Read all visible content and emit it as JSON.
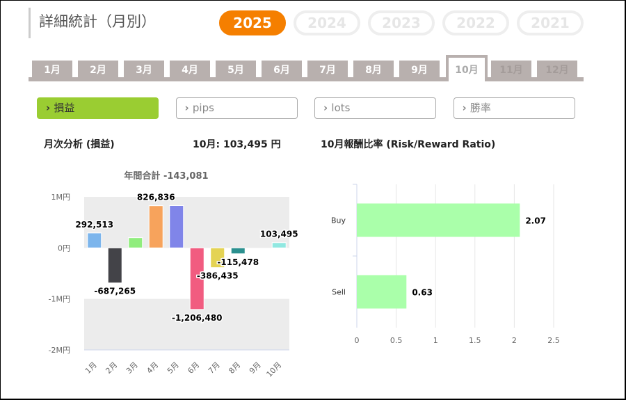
{
  "header": {
    "title": "詳細統計（月別）"
  },
  "years": [
    {
      "label": "2025",
      "active": true
    },
    {
      "label": "2024"
    },
    {
      "label": "2023"
    },
    {
      "label": "2022"
    },
    {
      "label": "2021"
    }
  ],
  "months": [
    "1月",
    "2月",
    "3月",
    "4月",
    "5月",
    "6月",
    "7月",
    "8月",
    "9月",
    "10月",
    "11月",
    "12月"
  ],
  "active_month": "10月",
  "metrics": [
    {
      "label": "損益",
      "active": true
    },
    {
      "label": "pips"
    },
    {
      "label": "lots"
    },
    {
      "label": "勝率"
    }
  ],
  "icons": {
    "metric_chevron": "chevron-right-icon"
  },
  "section": {
    "monthly_title": "月次分析 (損益)",
    "month_value": "10月:  103,495 円",
    "rr_title": "10月報酬比率 (Risk/Reward Ratio)"
  },
  "colors": {
    "accent": "#f57f00",
    "metric_active": "#9acd32",
    "tab": "#b8b0ae"
  },
  "chart_data": [
    {
      "type": "bar",
      "title": "年間合計 -143,081",
      "ylabel": "",
      "xlabel": "",
      "ylim": [
        -2000000,
        1000000
      ],
      "yticks": [
        {
          "v": 1000000,
          "label": "1M円"
        },
        {
          "v": 0,
          "label": "0円"
        },
        {
          "v": -1000000,
          "label": "-1M円"
        },
        {
          "v": -2000000,
          "label": "-2M円"
        }
      ],
      "categories": [
        "1月",
        "2月",
        "3月",
        "4月",
        "5月",
        "6月",
        "7月",
        "8月",
        "9月",
        "10月"
      ],
      "values": [
        292513,
        -687265,
        200000,
        826836,
        829733,
        -1206480,
        -386435,
        -115478,
        0,
        103495
      ],
      "labels": [
        "292,513",
        "-687,265",
        "",
        "826,836",
        "",
        "-1,206,480",
        "-386,435",
        "-115,478",
        "",
        "103,495"
      ],
      "colors": [
        "#7cb5ec",
        "#434348",
        "#90ed7d",
        "#f7a35c",
        "#8085e9",
        "#f15c80",
        "#e4d354",
        "#2b908f",
        "#f45b5b",
        "#91e8e1"
      ]
    },
    {
      "type": "bar",
      "orientation": "horizontal",
      "categories": [
        "Buy",
        "Sell"
      ],
      "values": [
        2.07,
        0.63
      ],
      "labels": [
        "2.07",
        "0.63"
      ],
      "xlim": [
        0,
        2.5
      ],
      "xticks": [
        "0",
        "0.5",
        "1",
        "1.5",
        "2",
        "2.5"
      ],
      "color": "#aaffaa"
    }
  ]
}
